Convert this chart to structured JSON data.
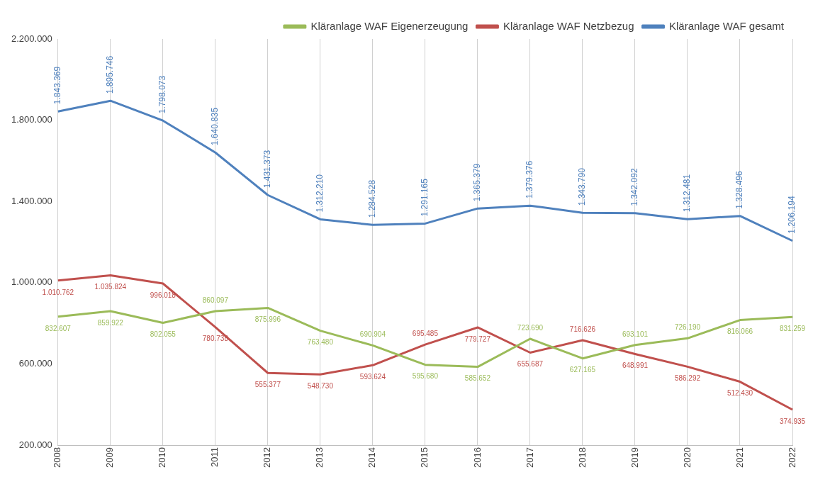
{
  "chart_data": {
    "type": "line",
    "categories": [
      "2008",
      "2009",
      "2010",
      "2011",
      "2012",
      "2013",
      "2014",
      "2015",
      "2016",
      "2017",
      "2018",
      "2019",
      "2020",
      "2021",
      "2022"
    ],
    "series": [
      {
        "name": "Kläranlage WAF Eigenerzeugung",
        "color": "#9bbb59",
        "values": [
          832607,
          859922,
          802055,
          860097,
          875996,
          763480,
          690904,
          595680,
          585652,
          723690,
          627165,
          693101,
          726190,
          816066,
          831259
        ],
        "value_labels": [
          "832.607",
          "859.922",
          "802.055",
          "860.097",
          "875.996",
          "763.480",
          "690.904",
          "595.680",
          "585.652",
          "723.690",
          "627.165",
          "693.101",
          "726.190",
          "816.066",
          "831.259"
        ]
      },
      {
        "name": "Kläranlage WAF Netzbezug",
        "color": "#c0504d",
        "values": [
          1010762,
          1035824,
          996018,
          780738,
          555377,
          548730,
          593624,
          695485,
          779727,
          655687,
          716626,
          648991,
          586292,
          512430,
          374935
        ],
        "value_labels": [
          "1.010.762",
          "1.035.824",
          "996.018",
          "780.738",
          "555.377",
          "548.730",
          "593.624",
          "695.485",
          "779.727",
          "655.687",
          "716.626",
          "648.991",
          "586.292",
          "512.430",
          "374.935"
        ]
      },
      {
        "name": "Kläranlage WAF gesamt",
        "color": "#4f81bd",
        "values": [
          1843369,
          1895746,
          1798073,
          1640835,
          1431373,
          1312210,
          1284528,
          1291165,
          1365379,
          1379376,
          1343790,
          1342092,
          1312481,
          1328496,
          1206194
        ],
        "value_labels": [
          "1.843.369",
          "1.895.746",
          "1.798.073",
          "1.640.835",
          "1.431.373",
          "1.312.210",
          "1.284.528",
          "1.291.165",
          "1.365.379",
          "1.379.376",
          "1.343.790",
          "1.342.092",
          "1.312.481",
          "1.328.496",
          "1.206.194"
        ]
      }
    ],
    "ylim": [
      200000,
      2200000
    ],
    "yticks": [
      {
        "value": 200000,
        "label": "200.000"
      },
      {
        "value": 600000,
        "label": "600.000"
      },
      {
        "value": 1000000,
        "label": "1.000.000"
      },
      {
        "value": 1400000,
        "label": "1.400.000"
      },
      {
        "value": 1800000,
        "label": "1.800.000"
      },
      {
        "value": 2200000,
        "label": "2.200.000"
      }
    ],
    "grid": "x",
    "legend": "top right",
    "marker": "none",
    "line_style": "solid"
  }
}
